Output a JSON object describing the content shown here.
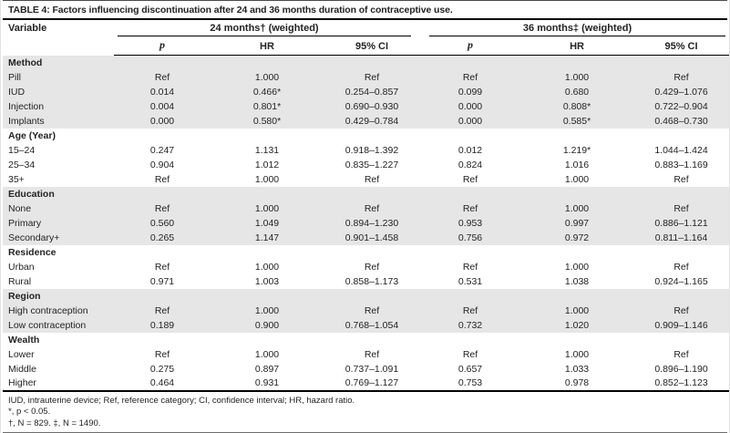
{
  "table": {
    "caption": "TABLE 4: Factors influencing discontinuation after 24 and 36 months duration of contraceptive use.",
    "col_variable": "Variable",
    "group_headers": [
      "24 months† (weighted)",
      "36 months‡ (weighted)"
    ],
    "sub_headers": [
      "p",
      "HR",
      "95% CI",
      "p",
      "HR",
      "95% CI"
    ],
    "sections": [
      {
        "label": "Method",
        "shaded": true,
        "rows": [
          {
            "label": "Pill",
            "cells": [
              "Ref",
              "1.000",
              "Ref",
              "Ref",
              "1.000",
              "Ref"
            ]
          },
          {
            "label": "IUD",
            "cells": [
              "0.014",
              "0.466*",
              "0.254–0.857",
              "0.099",
              "0.680",
              "0.429–1.076"
            ]
          },
          {
            "label": "Injection",
            "cells": [
              "0.004",
              "0.801*",
              "0.690–0.930",
              "0.000",
              "0.808*",
              "0.722–0.904"
            ]
          },
          {
            "label": "Implants",
            "cells": [
              "0.000",
              "0.580*",
              "0.429–0.784",
              "0.000",
              "0.585*",
              "0.468–0.730"
            ]
          }
        ]
      },
      {
        "label": "Age (Year)",
        "shaded": false,
        "rows": [
          {
            "label": "15–24",
            "cells": [
              "0.247",
              "1.131",
              "0.918–1.392",
              "0.012",
              "1.219*",
              "1.044–1.424"
            ]
          },
          {
            "label": "25–34",
            "cells": [
              "0.904",
              "1.012",
              "0.835–1.227",
              "0.824",
              "1.016",
              "0.883–1.169"
            ]
          },
          {
            "label": "35+",
            "cells": [
              "Ref",
              "1.000",
              "Ref",
              "Ref",
              "1.000",
              "Ref"
            ]
          }
        ]
      },
      {
        "label": "Education",
        "shaded": true,
        "rows": [
          {
            "label": "None",
            "cells": [
              "Ref",
              "1.000",
              "Ref",
              "Ref",
              "1.000",
              "Ref"
            ]
          },
          {
            "label": "Primary",
            "cells": [
              "0.560",
              "1.049",
              "0.894–1.230",
              "0.953",
              "0.997",
              "0.886–1.121"
            ]
          },
          {
            "label": "Secondary+",
            "cells": [
              "0.265",
              "1.147",
              "0.901–1.458",
              "0.756",
              "0.972",
              "0.811–1.164"
            ]
          }
        ]
      },
      {
        "label": "Residence",
        "shaded": false,
        "rows": [
          {
            "label": "Urban",
            "cells": [
              "Ref",
              "1.000",
              "Ref",
              "Ref",
              "1.000",
              "Ref"
            ]
          },
          {
            "label": "Rural",
            "cells": [
              "0.971",
              "1.003",
              "0.858–1.173",
              "0.531",
              "1.038",
              "0.924–1.165"
            ]
          }
        ]
      },
      {
        "label": "Region",
        "shaded": true,
        "rows": [
          {
            "label": "High contraception",
            "cells": [
              "Ref",
              "1.000",
              "Ref",
              "Ref",
              "1.000",
              "Ref"
            ]
          },
          {
            "label": "Low contraception",
            "cells": [
              "0.189",
              "0.900",
              "0.768–1.054",
              "0.732",
              "1.020",
              "0.909–1.146"
            ]
          }
        ]
      },
      {
        "label": "Wealth",
        "shaded": false,
        "rows": [
          {
            "label": "Lower",
            "cells": [
              "Ref",
              "1.000",
              "Ref",
              "Ref",
              "1.000",
              "Ref"
            ]
          },
          {
            "label": "Middle",
            "cells": [
              "0.275",
              "0.897",
              "0.737–1.091",
              "0.657",
              "1.033",
              "0.896–1.190"
            ]
          },
          {
            "label": "Higher",
            "cells": [
              "0.464",
              "0.931",
              "0.769–1.127",
              "0.753",
              "0.978",
              "0.852–1.123"
            ]
          }
        ]
      }
    ],
    "footnotes": [
      "IUD, intrauterine device; Ref, reference category; CI, confidence interval; HR, hazard ratio.",
      "*, p < 0.05.",
      "†, N = 829. ‡, N = 1490."
    ]
  },
  "colors": {
    "shaded_row": "#e6e6e6",
    "text": "#232225",
    "rule": "#000000"
  }
}
